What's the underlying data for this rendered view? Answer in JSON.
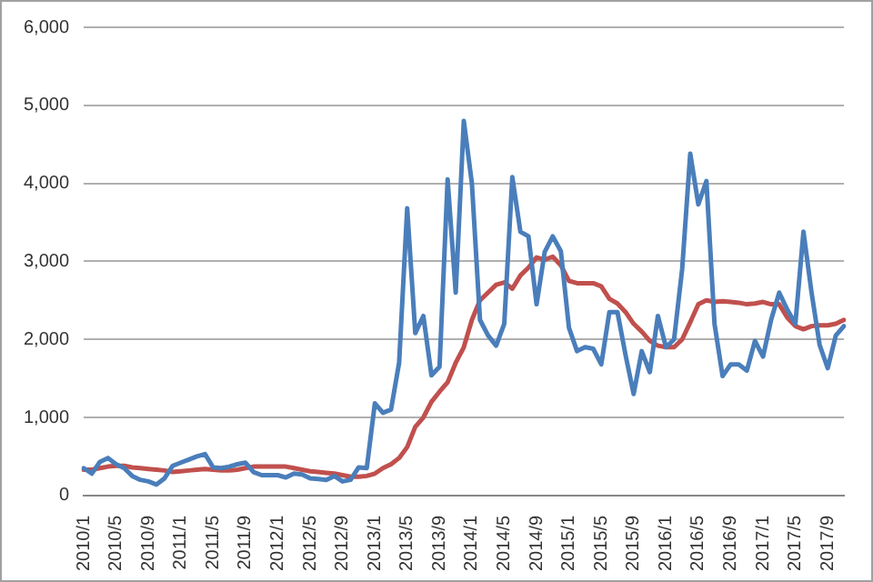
{
  "chart_data": {
    "type": "line",
    "categories": [
      "2010/1",
      null,
      null,
      null,
      "2010/5",
      null,
      null,
      null,
      "2010/9",
      null,
      null,
      null,
      "2011/1",
      null,
      null,
      null,
      "2011/5",
      null,
      null,
      null,
      "2011/9",
      null,
      null,
      null,
      "2012/1",
      null,
      null,
      null,
      "2012/5",
      null,
      null,
      null,
      "2012/9",
      null,
      null,
      null,
      "2013/1",
      null,
      null,
      null,
      "2013/5",
      null,
      null,
      null,
      "2013/9",
      null,
      null,
      null,
      "2014/1",
      null,
      null,
      null,
      "2014/5",
      null,
      null,
      null,
      "2014/9",
      null,
      null,
      null,
      "2015/1",
      null,
      null,
      null,
      "2015/5",
      null,
      null,
      null,
      "2015/9",
      null,
      null,
      null,
      "2016/1",
      null,
      null,
      null,
      "2016/5",
      null,
      null,
      null,
      "2016/9",
      null,
      null,
      null,
      "2017/1",
      null,
      null,
      null,
      "2017/5",
      null,
      null,
      null,
      "2017/9",
      null,
      null
    ],
    "series": [
      {
        "color": "#4a7ebb",
        "values": [
          350,
          280,
          430,
          480,
          400,
          350,
          250,
          200,
          180,
          140,
          220,
          380,
          420,
          460,
          500,
          530,
          360,
          350,
          370,
          400,
          420,
          300,
          260,
          260,
          260,
          230,
          280,
          270,
          220,
          210,
          200,
          250,
          180,
          200,
          360,
          350,
          1180,
          1060,
          1100,
          1700,
          3680,
          2080,
          2300,
          1540,
          1650,
          4050,
          2600,
          4800,
          4000,
          2250,
          2050,
          1920,
          2200,
          4080,
          3380,
          3320,
          2450,
          3120,
          3320,
          3130,
          2150,
          1850,
          1900,
          1880,
          1680,
          2350,
          2350,
          1800,
          1300,
          1850,
          1580,
          2300,
          1900,
          2000,
          2900,
          4380,
          3730,
          4030,
          2200,
          1530,
          1680,
          1680,
          1600,
          1980,
          1780,
          2250,
          2600,
          2380,
          2200,
          3380,
          2600,
          1930,
          1630,
          2050,
          2170
        ]
      },
      {
        "color": "#c0504d",
        "values": [
          330,
          330,
          350,
          370,
          380,
          380,
          360,
          350,
          340,
          330,
          320,
          300,
          310,
          320,
          330,
          340,
          330,
          320,
          320,
          330,
          350,
          370,
          370,
          370,
          370,
          370,
          350,
          330,
          310,
          300,
          290,
          280,
          260,
          240,
          240,
          250,
          280,
          350,
          400,
          480,
          620,
          880,
          1000,
          1200,
          1330,
          1450,
          1700,
          1900,
          2250,
          2500,
          2600,
          2700,
          2730,
          2650,
          2820,
          2920,
          3050,
          3020,
          3060,
          2950,
          2750,
          2720,
          2720,
          2720,
          2680,
          2520,
          2460,
          2350,
          2200,
          2100,
          1980,
          1920,
          1900,
          1900,
          2000,
          2220,
          2450,
          2500,
          2480,
          2490,
          2480,
          2470,
          2450,
          2460,
          2480,
          2450,
          2450,
          2280,
          2170,
          2130,
          2170,
          2180,
          2180,
          2200,
          2250
        ]
      }
    ],
    "ylim": [
      0,
      6000
    ],
    "yticks": [
      {
        "value": 0,
        "label": "0"
      },
      {
        "value": 1000,
        "label": "1,000"
      },
      {
        "value": 2000,
        "label": "2,000"
      },
      {
        "value": 3000,
        "label": "3,000"
      },
      {
        "value": 4000,
        "label": "4,000"
      },
      {
        "value": 5000,
        "label": "5,000"
      },
      {
        "value": 6000,
        "label": "6,000"
      }
    ],
    "grid": "y",
    "legend": false,
    "marker": "none",
    "line_style": "solid"
  }
}
